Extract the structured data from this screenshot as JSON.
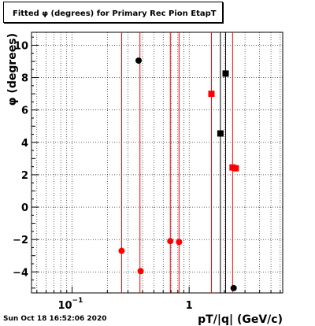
{
  "title": "Fitted φ (degrees) for Primary Rec Pion EtapT",
  "timestamp": "Sun Oct 18 16:52:06 2020",
  "chart_data": {
    "type": "scatter",
    "title": "Fitted φ (degrees) for Primary Rec Pion EtapT",
    "xlabel": "pT/|q| (GeV/c)",
    "ylabel": "φ (degrees)",
    "x_scale": "log",
    "xlim": [
      0.045,
      6.3
    ],
    "ylim": [
      -5.3,
      10.8
    ],
    "grid": true,
    "x_ticks": [
      {
        "value": 0.1,
        "base": "10",
        "exp": "−1"
      },
      {
        "value": 1,
        "base": "1",
        "exp": ""
      }
    ],
    "y_ticks": [
      -4,
      -2,
      0,
      2,
      4,
      6,
      8,
      10
    ],
    "y_tick_labels": [
      "−4",
      "−2",
      "0",
      "2",
      "4",
      "6",
      "8",
      "10"
    ],
    "colors": {
      "red": "#ff0000",
      "black": "#000000"
    },
    "vlines": [
      {
        "x": 0.265,
        "color": "red"
      },
      {
        "x": 0.38,
        "color": "red"
      },
      {
        "x": 0.69,
        "color": "red"
      },
      {
        "x": 0.82,
        "color": "red"
      },
      {
        "x": 1.55,
        "color": "red"
      },
      {
        "x": 2.35,
        "color": "red"
      },
      {
        "x": 1.85,
        "color": "black"
      },
      {
        "x": 2.05,
        "color": "black"
      }
    ],
    "series": [
      {
        "color": "red",
        "marker": "circle",
        "points": [
          {
            "x": 0.265,
            "y": -2.7
          },
          {
            "x": 0.385,
            "y": -3.95
          },
          {
            "x": 0.69,
            "y": -2.1
          },
          {
            "x": 0.82,
            "y": -2.15
          }
        ]
      },
      {
        "color": "black",
        "marker": "circle",
        "points": [
          {
            "x": 0.37,
            "y": 9.05
          },
          {
            "x": 2.4,
            "y": -5.0
          }
        ]
      },
      {
        "color": "red",
        "marker": "square",
        "points": [
          {
            "x": 1.55,
            "y": 7.0
          },
          {
            "x": 2.35,
            "y": 2.45
          },
          {
            "x": 2.5,
            "y": 2.4
          }
        ]
      },
      {
        "color": "black",
        "marker": "square",
        "points": [
          {
            "x": 1.85,
            "y": 4.55
          },
          {
            "x": 2.05,
            "y": 8.25
          }
        ]
      }
    ]
  }
}
